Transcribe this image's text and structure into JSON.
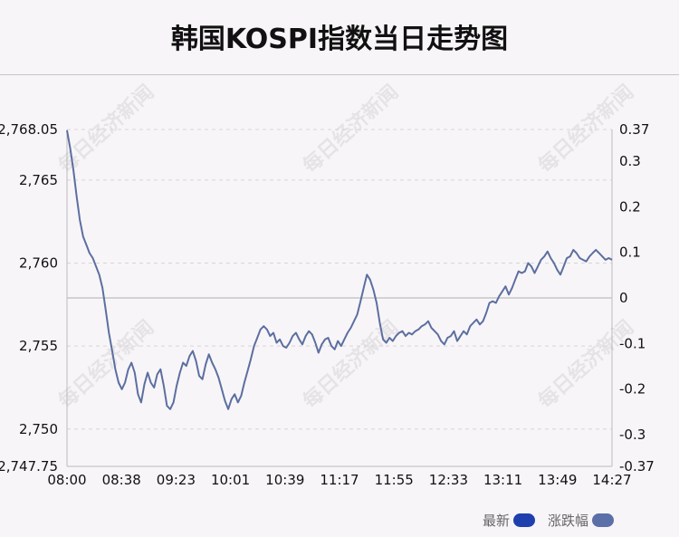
{
  "title": "韩国KOSPI指数当日走势图",
  "watermark": "每日经济新闻",
  "legend": [
    {
      "label": "最新",
      "color": "#1f3fae"
    },
    {
      "label": "涨跌幅",
      "color": "#5b6fa8"
    }
  ],
  "colors": {
    "line": "#5b6fa0",
    "grid": "#d8d4d8",
    "axis": "#bbbbbb",
    "baseline": "#c6c6c6"
  },
  "chart_data": {
    "type": "line",
    "title": "韩国KOSPI指数当日走势图",
    "xlabel": "",
    "ylabel": "",
    "x_ticks": [
      "08:00",
      "08:38",
      "09:23",
      "10:01",
      "10:39",
      "11:17",
      "11:55",
      "12:33",
      "13:11",
      "13:49",
      "14:27"
    ],
    "y_left_ticks": [
      "2,768.05",
      "2,765",
      "2,760",
      "2,755",
      "2,750",
      "2,747.75"
    ],
    "y_left_tick_values": [
      2768.05,
      2765,
      2760,
      2755,
      2750,
      2747.75
    ],
    "y_right_ticks": [
      "0.37",
      "0.3",
      "0.2",
      "0.1",
      "0",
      "-0.1",
      "-0.2",
      "-0.3",
      "-0.37"
    ],
    "y_right_tick_values": [
      0.37,
      0.3,
      0.2,
      0.1,
      0,
      -0.1,
      -0.2,
      -0.3,
      -0.37
    ],
    "ylim_left": [
      2747.75,
      2768.05
    ],
    "ylim_right": [
      -0.37,
      0.37
    ],
    "baseline_value": 2757.9,
    "grid": true,
    "series": [
      {
        "values": [
          2768.0,
          2766.9,
          2765.6,
          2764.0,
          2762.6,
          2761.6,
          2761.1,
          2760.6,
          2760.3,
          2759.8,
          2759.3,
          2758.5,
          2757.2,
          2755.8,
          2754.7,
          2753.6,
          2752.8,
          2752.4,
          2752.8,
          2753.6,
          2754.0,
          2753.4,
          2752.1,
          2751.6,
          2752.7,
          2753.4,
          2752.8,
          2752.5,
          2753.3,
          2753.6,
          2752.6,
          2751.4,
          2751.2,
          2751.6,
          2752.6,
          2753.4,
          2754.0,
          2753.8,
          2754.4,
          2754.7,
          2754.1,
          2753.2,
          2753.0,
          2753.9,
          2754.5,
          2754.0,
          2753.6,
          2753.1,
          2752.4,
          2751.7,
          2751.2,
          2751.8,
          2752.1,
          2751.6,
          2752.0,
          2752.8,
          2753.5,
          2754.2,
          2755.0,
          2755.5,
          2756.0,
          2756.2,
          2756.0,
          2755.6,
          2755.8,
          2755.2,
          2755.4,
          2755.0,
          2754.9,
          2755.2,
          2755.6,
          2755.8,
          2755.4,
          2755.1,
          2755.6,
          2755.9,
          2755.7,
          2755.2,
          2754.6,
          2755.1,
          2755.4,
          2755.5,
          2755.0,
          2754.8,
          2755.3,
          2755.0,
          2755.4,
          2755.8,
          2756.1,
          2756.5,
          2756.9,
          2757.7,
          2758.5,
          2759.3,
          2759.0,
          2758.4,
          2757.6,
          2756.4,
          2755.4,
          2755.2,
          2755.5,
          2755.3,
          2755.6,
          2755.8,
          2755.9,
          2755.6,
          2755.8,
          2755.7,
          2755.9,
          2756.0,
          2756.2,
          2756.3,
          2756.5,
          2756.1,
          2755.9,
          2755.7,
          2755.3,
          2755.1,
          2755.5,
          2755.6,
          2755.9,
          2755.3,
          2755.6,
          2755.9,
          2755.7,
          2756.2,
          2756.4,
          2756.6,
          2756.3,
          2756.5,
          2757.0,
          2757.6,
          2757.7,
          2757.6,
          2758.0,
          2758.3,
          2758.6,
          2758.1,
          2758.5,
          2759.0,
          2759.5,
          2759.4,
          2759.5,
          2760.0,
          2759.8,
          2759.4,
          2759.8,
          2760.2,
          2760.4,
          2760.7,
          2760.3,
          2760.0,
          2759.6,
          2759.3,
          2759.8,
          2760.3,
          2760.4,
          2760.8,
          2760.6,
          2760.3,
          2760.2,
          2760.1,
          2760.4,
          2760.6,
          2760.8,
          2760.6,
          2760.4,
          2760.2,
          2760.3,
          2760.2
        ]
      }
    ]
  }
}
